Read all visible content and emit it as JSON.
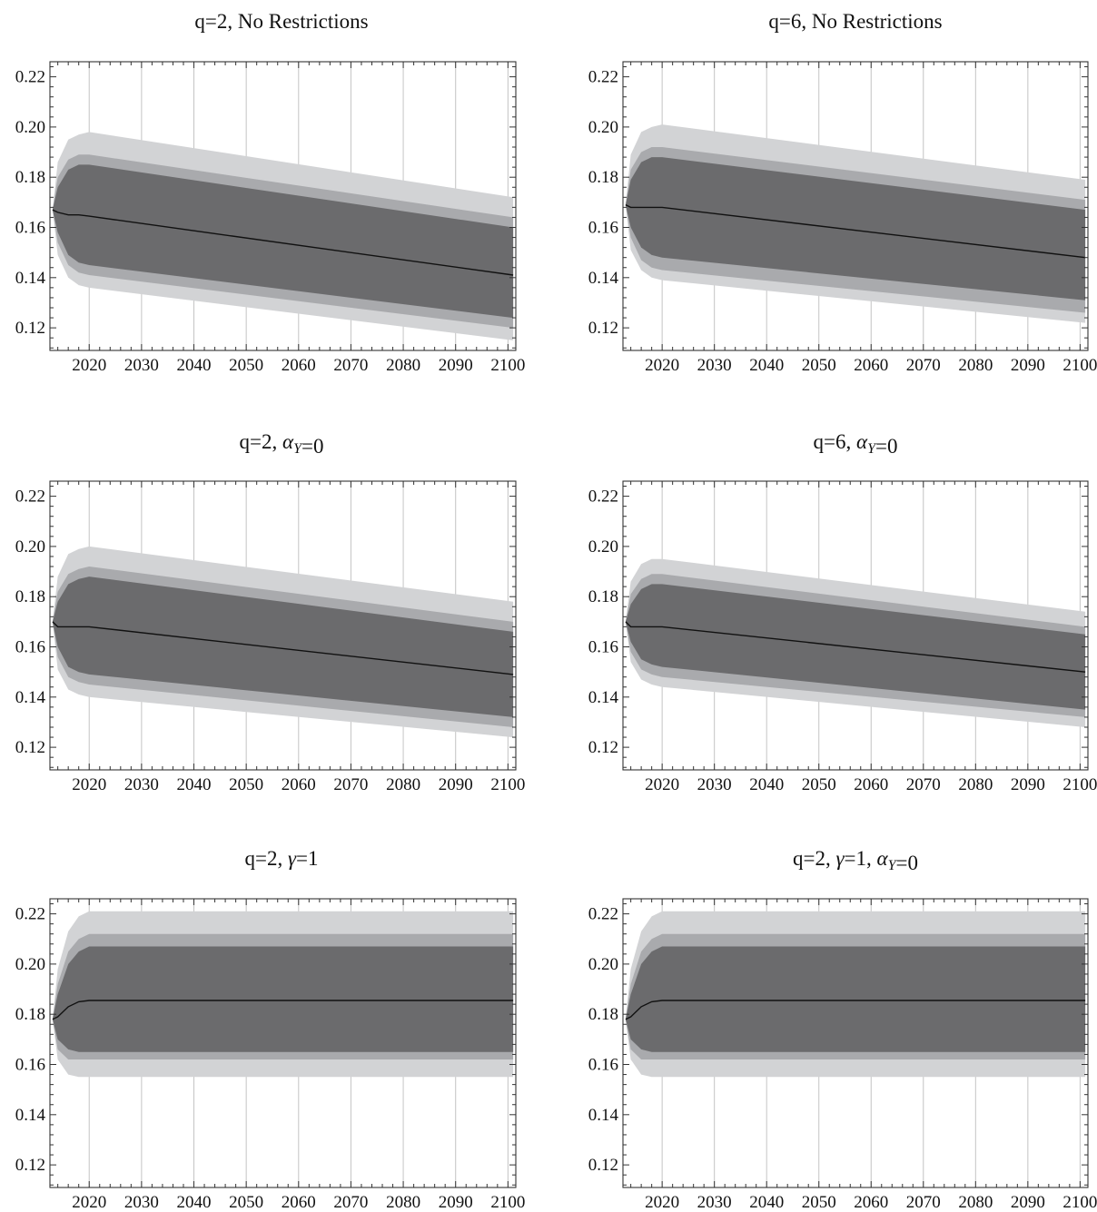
{
  "chart_data": [
    {
      "type": "area",
      "title": {
        "prefix": "q=2, ",
        "suffix": "No Restrictions",
        "greek": "",
        "sub": "",
        "greek2": "",
        "sub2": ""
      },
      "title_text": "q=2, No Restrictions",
      "xlim": [
        2012.5,
        2101.5
      ],
      "ylim": [
        0.111,
        0.226
      ],
      "x_ticks": [
        2020,
        2030,
        2040,
        2050,
        2060,
        2070,
        2080,
        2090,
        2100
      ],
      "y_ticks": [
        0.12,
        0.14,
        0.16,
        0.18,
        0.2,
        0.22
      ],
      "x_tick_labels": [
        "2020",
        "2030",
        "2040",
        "2050",
        "2060",
        "2070",
        "2080",
        "2090",
        "2100"
      ],
      "y_tick_labels": [
        "0.12",
        "0.14",
        "0.16",
        "0.18",
        "0.20",
        "0.22"
      ],
      "x_grid": true,
      "colors": {
        "outer": "#d2d3d5",
        "middle": "#a9aaad",
        "inner": "#6b6b6d",
        "line": "#111111"
      },
      "x": [
        2013,
        2014,
        2016,
        2018,
        2020,
        2101
      ],
      "median": [
        0.167,
        0.166,
        0.165,
        0.165,
        0.1645,
        0.141
      ],
      "band_inner": {
        "lower": [
          0.167,
          0.158,
          0.149,
          0.146,
          0.145,
          0.124
        ],
        "upper": [
          0.167,
          0.176,
          0.183,
          0.185,
          0.185,
          0.16
        ]
      },
      "band_middle": {
        "lower": [
          0.167,
          0.154,
          0.145,
          0.142,
          0.141,
          0.12
        ],
        "upper": [
          0.167,
          0.18,
          0.187,
          0.189,
          0.189,
          0.164
        ]
      },
      "band_outer": {
        "lower": [
          0.167,
          0.149,
          0.14,
          0.137,
          0.136,
          0.115
        ],
        "upper": [
          0.167,
          0.186,
          0.195,
          0.197,
          0.198,
          0.172
        ]
      }
    },
    {
      "type": "area",
      "title_text": "q=6, No Restrictions",
      "xlim": [
        2012.5,
        2101.5
      ],
      "ylim": [
        0.111,
        0.226
      ],
      "x_ticks": [
        2020,
        2030,
        2040,
        2050,
        2060,
        2070,
        2080,
        2090,
        2100
      ],
      "y_ticks": [
        0.12,
        0.14,
        0.16,
        0.18,
        0.2,
        0.22
      ],
      "x_tick_labels": [
        "2020",
        "2030",
        "2040",
        "2050",
        "2060",
        "2070",
        "2080",
        "2090",
        "2100"
      ],
      "y_tick_labels": [
        "0.12",
        "0.14",
        "0.16",
        "0.18",
        "0.20",
        "0.22"
      ],
      "x_grid": true,
      "colors": {
        "outer": "#d2d3d5",
        "middle": "#a9aaad",
        "inner": "#6b6b6d",
        "line": "#111111"
      },
      "x": [
        2013,
        2014,
        2016,
        2018,
        2020,
        2101
      ],
      "median": [
        0.169,
        0.168,
        0.168,
        0.168,
        0.168,
        0.148
      ],
      "band_inner": {
        "lower": [
          0.169,
          0.16,
          0.152,
          0.149,
          0.148,
          0.131
        ],
        "upper": [
          0.169,
          0.179,
          0.186,
          0.188,
          0.188,
          0.167
        ]
      },
      "band_middle": {
        "lower": [
          0.169,
          0.156,
          0.147,
          0.144,
          0.143,
          0.126
        ],
        "upper": [
          0.169,
          0.183,
          0.19,
          0.192,
          0.192,
          0.171
        ]
      },
      "band_outer": {
        "lower": [
          0.169,
          0.151,
          0.143,
          0.14,
          0.139,
          0.122
        ],
        "upper": [
          0.169,
          0.189,
          0.198,
          0.2,
          0.201,
          0.179
        ]
      }
    },
    {
      "type": "area",
      "title_text": "q=2, αY=0",
      "xlim": [
        2012.5,
        2101.5
      ],
      "ylim": [
        0.111,
        0.226
      ],
      "x_ticks": [
        2020,
        2030,
        2040,
        2050,
        2060,
        2070,
        2080,
        2090,
        2100
      ],
      "y_ticks": [
        0.12,
        0.14,
        0.16,
        0.18,
        0.2,
        0.22
      ],
      "x_tick_labels": [
        "2020",
        "2030",
        "2040",
        "2050",
        "2060",
        "2070",
        "2080",
        "2090",
        "2100"
      ],
      "y_tick_labels": [
        "0.12",
        "0.14",
        "0.16",
        "0.18",
        "0.20",
        "0.22"
      ],
      "x_grid": true,
      "colors": {
        "outer": "#d2d3d5",
        "middle": "#a9aaad",
        "inner": "#6b6b6d",
        "line": "#111111"
      },
      "x": [
        2013,
        2014,
        2016,
        2018,
        2020,
        2101
      ],
      "median": [
        0.17,
        0.168,
        0.168,
        0.168,
        0.168,
        0.149
      ],
      "band_inner": {
        "lower": [
          0.17,
          0.16,
          0.152,
          0.15,
          0.149,
          0.132
        ],
        "upper": [
          0.17,
          0.178,
          0.185,
          0.187,
          0.188,
          0.166
        ]
      },
      "band_middle": {
        "lower": [
          0.17,
          0.156,
          0.148,
          0.146,
          0.145,
          0.128
        ],
        "upper": [
          0.17,
          0.182,
          0.189,
          0.191,
          0.192,
          0.17
        ]
      },
      "band_outer": {
        "lower": [
          0.17,
          0.151,
          0.143,
          0.141,
          0.14,
          0.124
        ],
        "upper": [
          0.17,
          0.188,
          0.197,
          0.199,
          0.2,
          0.178
        ]
      }
    },
    {
      "type": "area",
      "title_text": "q=6, αY=0",
      "xlim": [
        2012.5,
        2101.5
      ],
      "ylim": [
        0.111,
        0.226
      ],
      "x_ticks": [
        2020,
        2030,
        2040,
        2050,
        2060,
        2070,
        2080,
        2090,
        2100
      ],
      "y_ticks": [
        0.12,
        0.14,
        0.16,
        0.18,
        0.2,
        0.22
      ],
      "x_tick_labels": [
        "2020",
        "2030",
        "2040",
        "2050",
        "2060",
        "2070",
        "2080",
        "2090",
        "2100"
      ],
      "y_tick_labels": [
        "0.12",
        "0.14",
        "0.16",
        "0.18",
        "0.20",
        "0.22"
      ],
      "x_grid": true,
      "colors": {
        "outer": "#d2d3d5",
        "middle": "#a9aaad",
        "inner": "#6b6b6d",
        "line": "#111111"
      },
      "x": [
        2013,
        2014,
        2016,
        2018,
        2020,
        2101
      ],
      "median": [
        0.17,
        0.168,
        0.168,
        0.168,
        0.168,
        0.15
      ],
      "band_inner": {
        "lower": [
          0.17,
          0.162,
          0.155,
          0.153,
          0.152,
          0.135
        ],
        "upper": [
          0.17,
          0.177,
          0.183,
          0.185,
          0.185,
          0.165
        ]
      },
      "band_middle": {
        "lower": [
          0.17,
          0.158,
          0.151,
          0.149,
          0.148,
          0.132
        ],
        "upper": [
          0.17,
          0.181,
          0.187,
          0.189,
          0.189,
          0.168
        ]
      },
      "band_outer": {
        "lower": [
          0.17,
          0.154,
          0.147,
          0.145,
          0.144,
          0.128
        ],
        "upper": [
          0.17,
          0.186,
          0.193,
          0.195,
          0.195,
          0.174
        ]
      }
    },
    {
      "type": "area",
      "title_text": "q=2, γ=1",
      "xlim": [
        2012.5,
        2101.5
      ],
      "ylim": [
        0.111,
        0.226
      ],
      "x_ticks": [
        2020,
        2030,
        2040,
        2050,
        2060,
        2070,
        2080,
        2090,
        2100
      ],
      "y_ticks": [
        0.12,
        0.14,
        0.16,
        0.18,
        0.2,
        0.22
      ],
      "x_tick_labels": [
        "2020",
        "2030",
        "2040",
        "2050",
        "2060",
        "2070",
        "2080",
        "2090",
        "2100"
      ],
      "y_tick_labels": [
        "0.12",
        "0.14",
        "0.16",
        "0.18",
        "0.20",
        "0.22"
      ],
      "x_grid": true,
      "colors": {
        "outer": "#d2d3d5",
        "middle": "#a9aaad",
        "inner": "#6b6b6d",
        "line": "#111111"
      },
      "x": [
        2013,
        2014,
        2016,
        2018,
        2020,
        2025,
        2101
      ],
      "median": [
        0.178,
        0.179,
        0.183,
        0.185,
        0.1855,
        0.1855,
        0.1855
      ],
      "band_inner": {
        "lower": [
          0.178,
          0.17,
          0.166,
          0.165,
          0.165,
          0.165,
          0.165
        ],
        "upper": [
          0.178,
          0.188,
          0.2,
          0.205,
          0.207,
          0.207,
          0.207
        ]
      },
      "band_middle": {
        "lower": [
          0.178,
          0.166,
          0.162,
          0.162,
          0.162,
          0.162,
          0.162
        ],
        "upper": [
          0.178,
          0.192,
          0.205,
          0.21,
          0.212,
          0.212,
          0.212
        ]
      },
      "band_outer": {
        "lower": [
          0.178,
          0.162,
          0.156,
          0.155,
          0.155,
          0.155,
          0.155
        ],
        "upper": [
          0.178,
          0.198,
          0.213,
          0.219,
          0.221,
          0.221,
          0.221
        ]
      }
    },
    {
      "type": "area",
      "title_text": "q=2, γ=1, αY=0",
      "xlim": [
        2012.5,
        2101.5
      ],
      "ylim": [
        0.111,
        0.226
      ],
      "x_ticks": [
        2020,
        2030,
        2040,
        2050,
        2060,
        2070,
        2080,
        2090,
        2100
      ],
      "y_ticks": [
        0.12,
        0.14,
        0.16,
        0.18,
        0.2,
        0.22
      ],
      "x_tick_labels": [
        "2020",
        "2030",
        "2040",
        "2050",
        "2060",
        "2070",
        "2080",
        "2090",
        "2100"
      ],
      "y_tick_labels": [
        "0.12",
        "0.14",
        "0.16",
        "0.18",
        "0.20",
        "0.22"
      ],
      "x_grid": true,
      "colors": {
        "outer": "#d2d3d5",
        "middle": "#a9aaad",
        "inner": "#6b6b6d",
        "line": "#111111"
      },
      "x": [
        2013,
        2014,
        2016,
        2018,
        2020,
        2025,
        2101
      ],
      "median": [
        0.178,
        0.179,
        0.183,
        0.185,
        0.1855,
        0.1855,
        0.1855
      ],
      "band_inner": {
        "lower": [
          0.178,
          0.17,
          0.166,
          0.165,
          0.165,
          0.165,
          0.165
        ],
        "upper": [
          0.178,
          0.188,
          0.2,
          0.205,
          0.207,
          0.207,
          0.207
        ]
      },
      "band_middle": {
        "lower": [
          0.178,
          0.166,
          0.162,
          0.162,
          0.162,
          0.162,
          0.162
        ],
        "upper": [
          0.178,
          0.192,
          0.205,
          0.21,
          0.212,
          0.212,
          0.212
        ]
      },
      "band_outer": {
        "lower": [
          0.178,
          0.162,
          0.156,
          0.155,
          0.155,
          0.155,
          0.155
        ],
        "upper": [
          0.178,
          0.198,
          0.213,
          0.219,
          0.221,
          0.221,
          0.221
        ]
      }
    }
  ]
}
